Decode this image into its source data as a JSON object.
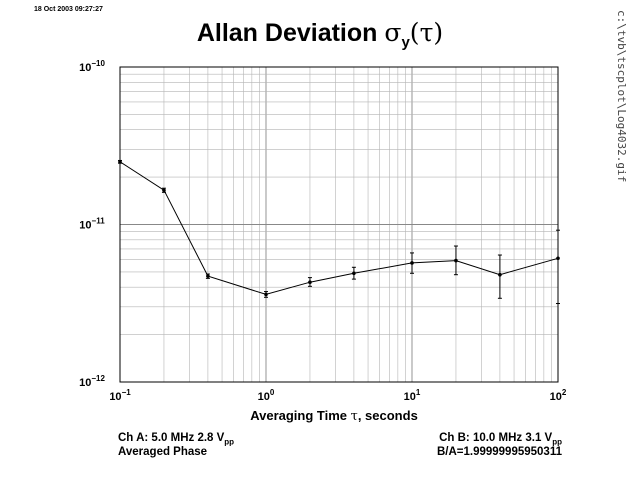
{
  "timestamp": "18 Oct 2003 09:27:27",
  "title": {
    "prefix": "Allan Deviation ",
    "sigma": "σ",
    "sub": "y",
    "open": "(",
    "tau": "τ",
    "close": ")"
  },
  "file_path": "c:\\tvb\\tscplot\\Log4032.gif",
  "x_axis": {
    "label_prefix": "Averaging Time ",
    "label_tau": "τ",
    "label_suffix": ", seconds",
    "ticks": [
      {
        "base": "10",
        "exp": "−1",
        "value": 0.1
      },
      {
        "base": "10",
        "exp": "0",
        "value": 1
      },
      {
        "base": "10",
        "exp": "1",
        "value": 10
      },
      {
        "base": "10",
        "exp": "2",
        "value": 100
      }
    ]
  },
  "y_axis": {
    "ticks": [
      {
        "base": "10",
        "exp": "−10",
        "value": 1e-10
      },
      {
        "base": "10",
        "exp": "−11",
        "value": 1e-11
      },
      {
        "base": "10",
        "exp": "−12",
        "value": 1e-12
      }
    ]
  },
  "footer": {
    "ch_a_prefix": "Ch A: 5.0 MHz 2.8 V",
    "ch_a_sub": "pp",
    "mode": "Averaged Phase",
    "ch_b_prefix": "Ch B: 10.0 MHz 3.1 V",
    "ch_b_sub": "pp",
    "ratio": "B/A=1.99999995950311"
  },
  "chart_data": {
    "type": "line",
    "title": "Allan Deviation σy(τ)",
    "xlabel": "Averaging Time τ, seconds",
    "ylabel": "",
    "x_scale": "log",
    "y_scale": "log",
    "xlim": [
      0.1,
      100
    ],
    "ylim": [
      1e-12,
      1e-10
    ],
    "grid": true,
    "series": [
      {
        "x": [
          0.1,
          0.2,
          0.4,
          1,
          2,
          4,
          10,
          20,
          40,
          100
        ],
        "y": [
          2.5e-11,
          1.65e-11,
          4.7e-12,
          3.6e-12,
          4.3e-12,
          4.9e-12,
          5.7e-12,
          5.9e-12,
          4.8e-12,
          6.1e-12
        ],
        "y_low": [
          2.45e-11,
          1.6e-11,
          4.55e-12,
          3.45e-12,
          4.05e-12,
          4.5e-12,
          4.9e-12,
          4.8e-12,
          3.4e-12,
          3.15e-12
        ],
        "y_high": [
          2.55e-11,
          1.7e-11,
          4.85e-12,
          3.75e-12,
          4.6e-12,
          5.35e-12,
          6.6e-12,
          7.3e-12,
          6.4e-12,
          9.2e-12
        ]
      }
    ]
  }
}
